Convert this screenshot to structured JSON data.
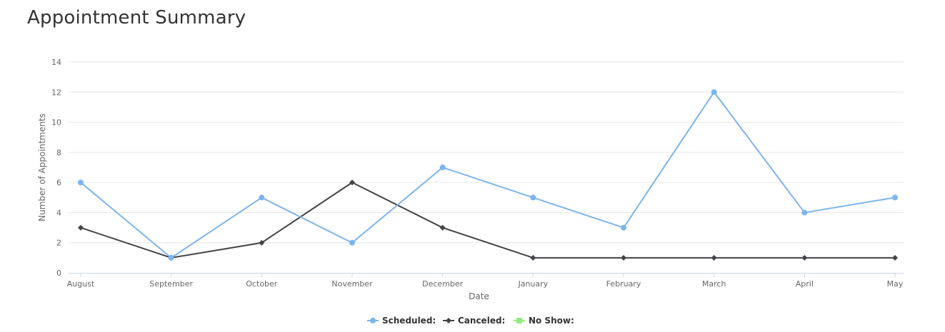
{
  "page": {
    "title": "Appointment Summary"
  },
  "chart_data": {
    "type": "line",
    "title": "Appointment Summary",
    "xlabel": "Date",
    "ylabel": "Number of Appointments",
    "categories": [
      "August",
      "September",
      "October",
      "November",
      "December",
      "January",
      "February",
      "March",
      "April",
      "May"
    ],
    "ylim": [
      0,
      14
    ],
    "yticks": [
      0,
      2,
      4,
      6,
      8,
      10,
      12,
      14
    ],
    "grid": true,
    "legend_position": "bottom-center",
    "series": [
      {
        "name": "Scheduled:",
        "color": "#7cb5ec",
        "marker": "circle",
        "values": [
          6,
          1,
          5,
          2,
          7,
          5,
          3,
          12,
          4,
          5
        ]
      },
      {
        "name": "Canceled:",
        "color": "#434348",
        "marker": "diamond",
        "values": [
          3,
          1,
          2,
          6,
          3,
          1,
          1,
          1,
          1,
          1
        ]
      },
      {
        "name": "No Show:",
        "color": "#90ed7d",
        "marker": "square",
        "values": [
          0,
          0,
          0,
          0,
          0,
          0,
          0,
          0,
          0,
          0
        ]
      }
    ]
  }
}
